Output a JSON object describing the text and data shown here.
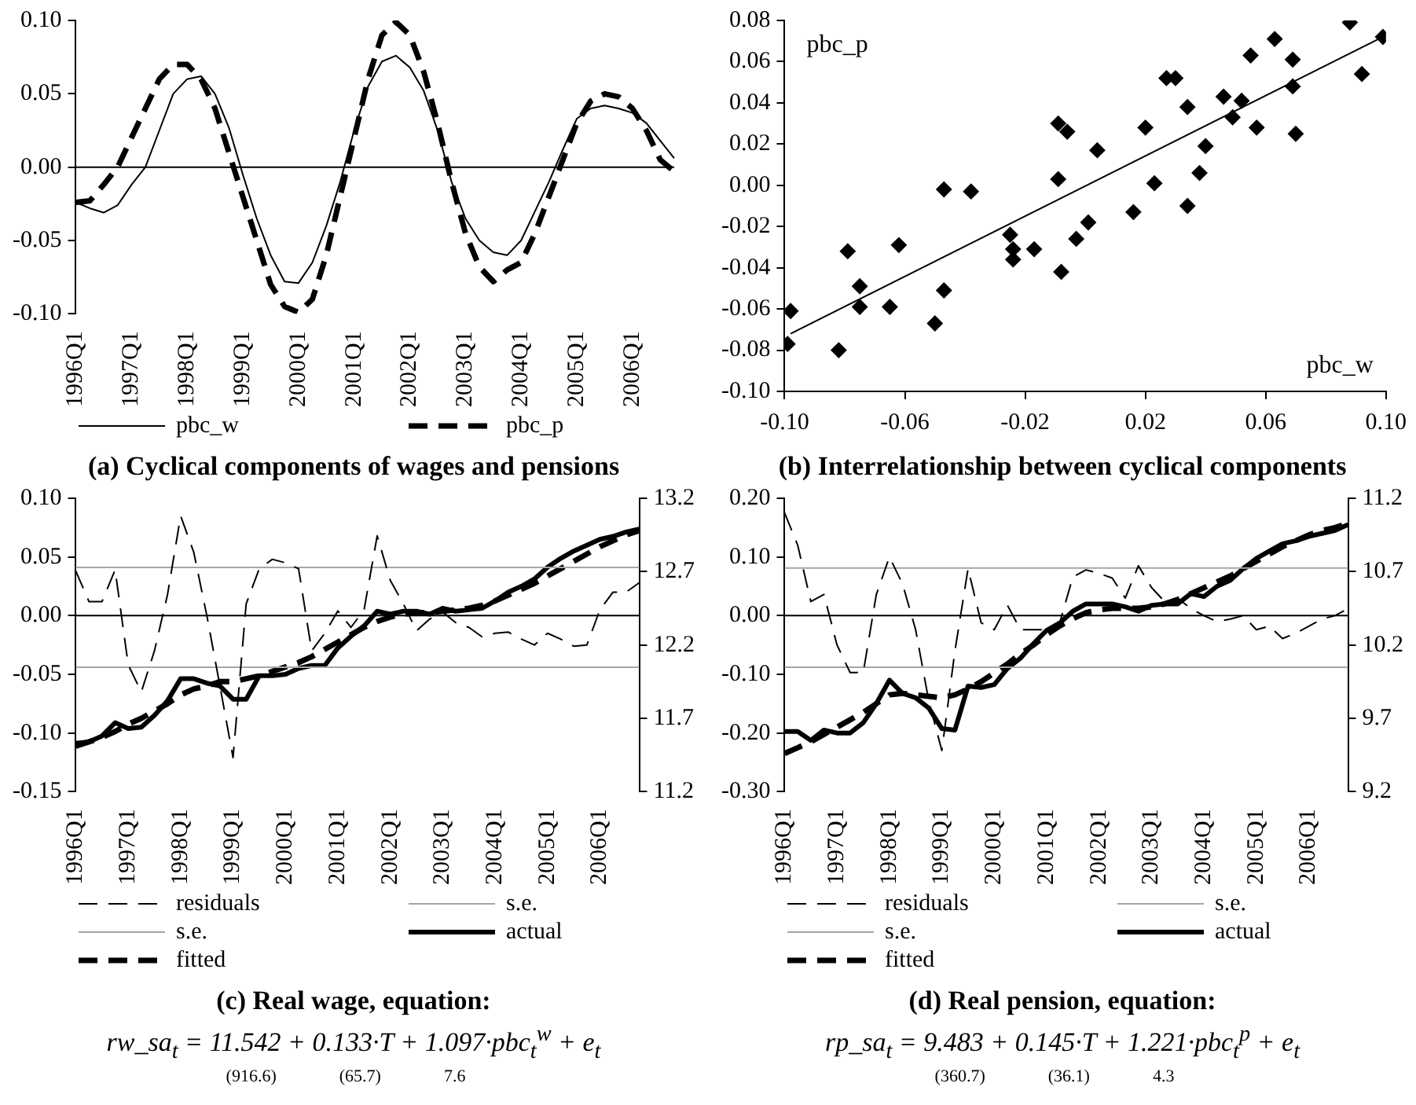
{
  "chart_data": [
    {
      "type": "line",
      "title": "(a) Cyclical components of wages and pensions",
      "categories": [
        "1996Q1",
        null,
        null,
        null,
        "1997Q1",
        null,
        null,
        null,
        "1998Q1",
        null,
        null,
        null,
        "1999Q1",
        null,
        null,
        null,
        "2000Q1",
        null,
        null,
        null,
        "2001Q1",
        null,
        null,
        null,
        "2002Q1",
        null,
        null,
        null,
        "2003Q1",
        null,
        null,
        null,
        "2004Q1",
        null,
        null,
        null,
        "2005Q1",
        null,
        null,
        null,
        "2006Q1",
        null,
        null,
        null
      ],
      "series": [
        {
          "name": "pbc_w",
          "color": "#000000",
          "line_style": "solid",
          "values": [
            -0.024,
            -0.028,
            -0.031,
            -0.026,
            -0.012,
            0.0,
            0.025,
            0.05,
            0.06,
            0.062,
            0.05,
            0.027,
            -0.005,
            -0.035,
            -0.06,
            -0.078,
            -0.079,
            -0.065,
            -0.04,
            -0.01,
            0.025,
            0.055,
            0.072,
            0.076,
            0.068,
            0.052,
            0.025,
            -0.01,
            -0.035,
            -0.05,
            -0.058,
            -0.06,
            -0.05,
            -0.03,
            -0.01,
            0.012,
            0.033,
            0.04,
            0.042,
            0.04,
            0.037,
            0.03,
            0.018,
            0.006
          ]
        },
        {
          "name": "pbc_p",
          "color": "#000000",
          "line_style": "dashed",
          "values": [
            -0.024,
            -0.023,
            -0.012,
            0.0,
            0.02,
            0.04,
            0.06,
            0.07,
            0.07,
            0.06,
            0.04,
            0.01,
            -0.02,
            -0.05,
            -0.08,
            -0.095,
            -0.099,
            -0.09,
            -0.06,
            -0.02,
            0.02,
            0.06,
            0.09,
            0.099,
            0.09,
            0.065,
            0.03,
            -0.01,
            -0.045,
            -0.068,
            -0.078,
            -0.07,
            -0.065,
            -0.045,
            -0.02,
            0.005,
            0.03,
            0.045,
            0.05,
            0.048,
            0.04,
            0.025,
            0.005,
            -0.003
          ]
        }
      ],
      "ylim": [
        -0.1,
        0.1
      ],
      "yticks": [
        {
          "value": -0.1,
          "label": "-0.10"
        },
        -0.05,
        {
          "value": 0,
          "label": "0.00"
        },
        0.05,
        {
          "value": 0.1,
          "label": "0.10"
        }
      ],
      "ref_lines": [
        {
          "axis": "y",
          "value": 0,
          "color": "#000000"
        }
      ],
      "legend": "bottom"
    },
    {
      "type": "scatter",
      "title": "(b) Interrelationship between cyclical components",
      "xlabel": "pbc_w",
      "ylabel": "pbc_p",
      "marker": "diamond",
      "series": [
        {
          "color": "#000000",
          "x": [
            -0.098,
            -0.099,
            -0.082,
            -0.079,
            -0.075,
            -0.075,
            -0.065,
            -0.062,
            -0.05,
            -0.047,
            -0.047,
            -0.038,
            -0.025,
            -0.024,
            -0.024,
            -0.017,
            -0.009,
            -0.009,
            -0.008,
            -0.006,
            -0.003,
            0.001,
            0.004,
            0.016,
            0.02,
            0.023,
            0.027,
            0.03,
            0.034,
            0.034,
            0.038,
            0.04,
            0.046,
            0.049,
            0.052,
            0.055,
            0.057,
            0.063,
            0.069,
            0.069,
            0.07,
            0.088,
            0.092,
            0.099
          ],
          "values": [
            -0.061,
            -0.077,
            -0.08,
            -0.032,
            -0.059,
            -0.049,
            -0.059,
            -0.029,
            -0.067,
            -0.002,
            -0.051,
            -0.003,
            -0.024,
            -0.031,
            -0.036,
            -0.031,
            0.003,
            0.03,
            -0.042,
            0.026,
            -0.026,
            -0.018,
            0.017,
            -0.013,
            0.028,
            0.001,
            0.052,
            0.052,
            0.038,
            -0.01,
            0.006,
            0.019,
            0.043,
            0.033,
            0.041,
            0.063,
            0.028,
            0.071,
            0.061,
            0.048,
            0.025,
            0.079,
            0.054,
            0.072
          ]
        },
        {
          "type": "line",
          "marker": "none",
          "color": "#000000",
          "x": [
            -0.098,
            0.099
          ],
          "values": [
            -0.072,
            0.072
          ]
        }
      ],
      "xlim": [
        -0.1,
        0.1
      ],
      "xticks": [
        {
          "value": -0.1,
          "label": "-0.10"
        },
        -0.06,
        -0.02,
        0.02,
        0.06,
        {
          "value": 0.1,
          "label": "0.10"
        }
      ],
      "ylim": [
        -0.1,
        0.08
      ],
      "yticks": [
        {
          "value": -0.1,
          "label": "-0.10"
        },
        -0.08,
        -0.06,
        -0.04,
        -0.02,
        {
          "value": 0,
          "label": "0.00"
        },
        0.02,
        0.04,
        0.06,
        0.08
      ]
    },
    {
      "type": "line",
      "title": "(c) Real wage, equation:",
      "subtitle": "rw_sa$_{t}$ = 11.542 + 0.133·T + 1.097·pbc$_{t}$$^{w}$ + e$_{t}$",
      "annotations": [
        "(916.6)",
        "(65.7)",
        "7.6"
      ],
      "categories": [
        "1996Q1",
        null,
        null,
        null,
        "1997Q1",
        null,
        null,
        null,
        "1998Q1",
        null,
        null,
        null,
        "1999Q1",
        null,
        null,
        null,
        "2000Q1",
        null,
        null,
        null,
        "2001Q1",
        null,
        null,
        null,
        "2002Q1",
        null,
        null,
        null,
        "2003Q1",
        null,
        null,
        null,
        "2004Q1",
        null,
        null,
        null,
        "2005Q1",
        null,
        null,
        null,
        "2006Q1",
        null,
        null,
        null
      ],
      "series": [
        {
          "name": "residuals",
          "color": "#000000",
          "line_style": "dashed",
          "values": [
            0.038,
            0.012,
            0.012,
            0.039,
            -0.042,
            -0.065,
            -0.03,
            0.018,
            0.085,
            0.054,
            0.0,
            -0.06,
            -0.121,
            0.01,
            0.04,
            0.048,
            0.045,
            0.04,
            -0.03,
            -0.015,
            0.004,
            -0.01,
            0.005,
            0.068,
            0.03,
            0.01,
            -0.013,
            -0.003,
            0.003,
            -0.006,
            -0.01,
            -0.018,
            -0.015,
            -0.014,
            -0.02,
            -0.025,
            -0.015,
            -0.02,
            -0.026,
            -0.025,
            0.005,
            0.02,
            0.02,
            0.028
          ]
        },
        {
          "name": "s.e.",
          "color": "#a6a6a6",
          "line_style": "solid",
          "values": [
            0.041,
            0.041,
            0.041,
            0.041,
            0.041,
            0.041,
            0.041,
            0.041,
            0.041,
            0.041,
            0.041,
            0.041,
            0.041,
            0.041,
            0.041,
            0.041,
            0.041,
            0.041,
            0.041,
            0.041,
            0.041,
            0.041,
            0.041,
            0.041,
            0.041,
            0.041,
            0.041,
            0.041,
            0.041,
            0.041,
            0.041,
            0.041,
            0.041,
            0.041,
            0.041,
            0.041,
            0.041,
            0.041,
            0.041,
            0.041,
            0.041,
            0.041,
            0.041,
            0.041
          ]
        },
        {
          "name": "s.e.",
          "color": "#a6a6a6",
          "line_style": "solid",
          "values": [
            -0.044,
            -0.044,
            -0.044,
            -0.044,
            -0.044,
            -0.044,
            -0.044,
            -0.044,
            -0.044,
            -0.044,
            -0.044,
            -0.044,
            -0.044,
            -0.044,
            -0.044,
            -0.044,
            -0.044,
            -0.044,
            -0.044,
            -0.044,
            -0.044,
            -0.044,
            -0.044,
            -0.044,
            -0.044,
            -0.044,
            -0.044,
            -0.044,
            -0.044,
            -0.044,
            -0.044,
            -0.044,
            -0.044,
            -0.044,
            -0.044,
            -0.044,
            -0.044,
            -0.044,
            -0.044,
            -0.044,
            -0.044,
            -0.044,
            -0.044,
            -0.044
          ]
        },
        {
          "name": "actual",
          "color": "#000000",
          "line_style": "solid",
          "axis": "y2",
          "values": [
            11.53,
            11.54,
            11.58,
            11.67,
            11.63,
            11.64,
            11.72,
            11.82,
            11.97,
            11.97,
            11.94,
            11.92,
            11.83,
            11.83,
            11.99,
            11.99,
            12.0,
            12.04,
            12.06,
            12.06,
            12.18,
            12.26,
            12.33,
            12.43,
            12.41,
            12.43,
            12.43,
            12.41,
            12.45,
            12.43,
            12.44,
            12.45,
            12.5,
            12.56,
            12.6,
            12.65,
            12.73,
            12.79,
            12.84,
            12.88,
            12.92,
            12.94,
            12.97,
            12.99
          ]
        },
        {
          "name": "fitted",
          "color": "#000000",
          "line_style": "dashed",
          "axis": "y2",
          "values": [
            11.51,
            11.54,
            11.57,
            11.61,
            11.66,
            11.7,
            11.75,
            11.8,
            11.86,
            11.9,
            11.92,
            11.95,
            11.95,
            11.97,
            11.99,
            12.02,
            12.05,
            12.08,
            12.12,
            12.17,
            12.22,
            12.27,
            12.32,
            12.36,
            12.39,
            12.41,
            12.42,
            12.42,
            12.43,
            12.44,
            12.45,
            12.47,
            12.5,
            12.54,
            12.58,
            12.62,
            12.67,
            12.72,
            12.77,
            12.82,
            12.87,
            12.91,
            12.95,
            12.98
          ]
        }
      ],
      "ylim": [
        -0.15,
        0.1
      ],
      "yticks": [
        {
          "value": -0.15,
          "label": "-0.15"
        },
        {
          "value": -0.1,
          "label": "-0.10"
        },
        -0.05,
        {
          "value": 0,
          "label": "0.00"
        },
        0.05,
        {
          "value": 0.1,
          "label": "0.10"
        }
      ],
      "y2lim": [
        11.2,
        13.2
      ],
      "y2ticks": [
        11.2,
        11.7,
        12.2,
        12.7,
        13.2
      ],
      "ref_lines": [
        {
          "axis": "y",
          "value": 0,
          "color": "#000000"
        }
      ],
      "legend": "bottom"
    },
    {
      "type": "line",
      "title": "(d) Real pension, equation:",
      "subtitle": "rp_sa$_{t}$ = 9.483 + 0.145·T + 1.221·pbc$_{t}$$^{p}$ + e$_{t}$",
      "annotations": [
        "(360.7)",
        "(36.1)",
        "4.3"
      ],
      "categories": [
        "1996Q1",
        null,
        null,
        null,
        "1997Q1",
        null,
        null,
        null,
        "1998Q1",
        null,
        null,
        null,
        "1999Q1",
        null,
        null,
        null,
        "2000Q1",
        null,
        null,
        null,
        "2001Q1",
        null,
        null,
        null,
        "2002Q1",
        null,
        null,
        null,
        "2003Q1",
        null,
        null,
        null,
        "2004Q1",
        null,
        null,
        null,
        "2005Q1",
        null,
        null,
        null,
        "2006Q1",
        null,
        null,
        null
      ],
      "series": [
        {
          "name": "residuals",
          "color": "#000000",
          "line_style": "dashed",
          "values": [
            0.175,
            0.12,
            0.024,
            0.036,
            -0.05,
            -0.097,
            -0.097,
            0.036,
            0.1,
            0.054,
            -0.024,
            -0.145,
            -0.23,
            -0.06,
            0.08,
            -0.012,
            -0.024,
            0.018,
            -0.024,
            -0.024,
            -0.024,
            -0.012,
            0.066,
            0.078,
            0.072,
            0.064,
            0.03,
            0.085,
            0.048,
            0.024,
            0.03,
            0.012,
            0.0,
            -0.01,
            -0.006,
            0.0,
            -0.024,
            -0.018,
            -0.039,
            -0.03,
            -0.018,
            -0.006,
            0.0,
            0.012
          ]
        },
        {
          "name": "s.e.",
          "color": "#a6a6a6",
          "line_style": "solid",
          "values": [
            0.081,
            0.081,
            0.081,
            0.081,
            0.081,
            0.081,
            0.081,
            0.081,
            0.081,
            0.081,
            0.081,
            0.081,
            0.081,
            0.081,
            0.081,
            0.081,
            0.081,
            0.081,
            0.081,
            0.081,
            0.081,
            0.081,
            0.081,
            0.081,
            0.081,
            0.081,
            0.081,
            0.081,
            0.081,
            0.081,
            0.081,
            0.081,
            0.081,
            0.081,
            0.081,
            0.081,
            0.081,
            0.081,
            0.081,
            0.081,
            0.081,
            0.081,
            0.081,
            0.081
          ]
        },
        {
          "name": "s.e.",
          "color": "#a6a6a6",
          "line_style": "solid",
          "values": [
            -0.088,
            -0.088,
            -0.088,
            -0.088,
            -0.088,
            -0.088,
            -0.088,
            -0.088,
            -0.088,
            -0.088,
            -0.088,
            -0.088,
            -0.088,
            -0.088,
            -0.088,
            -0.088,
            -0.088,
            -0.088,
            -0.088,
            -0.088,
            -0.088,
            -0.088,
            -0.088,
            -0.088,
            -0.088,
            -0.088,
            -0.088,
            -0.088,
            -0.088,
            -0.088,
            -0.088,
            -0.088,
            -0.088,
            -0.088,
            -0.088,
            -0.088,
            -0.088,
            -0.088,
            -0.088,
            -0.088,
            -0.088,
            -0.088,
            -0.088,
            -0.088
          ]
        },
        {
          "name": "actual",
          "color": "#000000",
          "line_style": "solid",
          "axis": "y2",
          "values": [
            9.61,
            9.61,
            9.55,
            9.62,
            9.6,
            9.6,
            9.67,
            9.8,
            9.96,
            9.87,
            9.84,
            9.77,
            9.63,
            9.62,
            9.92,
            9.91,
            9.93,
            10.04,
            10.11,
            10.21,
            10.3,
            10.35,
            10.43,
            10.48,
            10.48,
            10.48,
            10.46,
            10.43,
            10.47,
            10.48,
            10.48,
            10.55,
            10.53,
            10.6,
            10.64,
            10.72,
            10.79,
            10.84,
            10.89,
            10.91,
            10.94,
            10.96,
            10.98,
            11.02
          ]
        },
        {
          "name": "fitted",
          "color": "#000000",
          "line_style": "dashed",
          "axis": "y2",
          "values": [
            9.46,
            9.5,
            9.54,
            9.59,
            9.64,
            9.69,
            9.74,
            9.8,
            9.86,
            9.87,
            9.86,
            9.85,
            9.84,
            9.86,
            9.9,
            9.95,
            10.01,
            10.07,
            10.14,
            10.2,
            10.27,
            10.33,
            10.38,
            10.42,
            10.44,
            10.45,
            10.45,
            10.45,
            10.46,
            10.48,
            10.51,
            10.55,
            10.59,
            10.63,
            10.67,
            10.72,
            10.77,
            10.82,
            10.87,
            10.91,
            10.95,
            10.98,
            11.0,
            11.03
          ]
        }
      ],
      "ylim": [
        -0.3,
        0.2
      ],
      "yticks": [
        {
          "value": -0.3,
          "label": "-0.30"
        },
        {
          "value": -0.2,
          "label": "-0.20"
        },
        {
          "value": -0.1,
          "label": "-0.10"
        },
        {
          "value": 0,
          "label": "0.00"
        },
        {
          "value": 0.1,
          "label": "0.10"
        },
        {
          "value": 0.2,
          "label": "0.20"
        }
      ],
      "y2lim": [
        9.2,
        11.2
      ],
      "y2ticks": [
        9.2,
        9.7,
        10.2,
        10.7,
        11.2
      ],
      "ref_lines": [
        {
          "axis": "y",
          "value": 0,
          "color": "#000000"
        }
      ],
      "legend": "bottom"
    }
  ]
}
